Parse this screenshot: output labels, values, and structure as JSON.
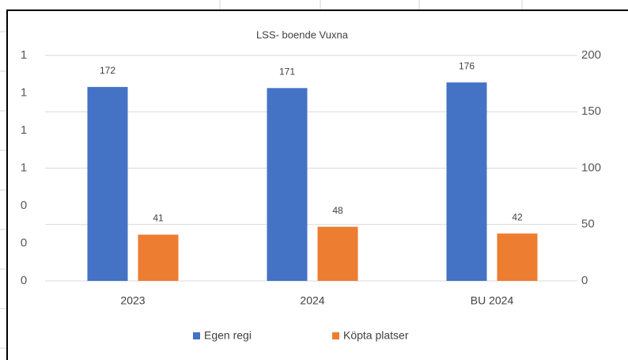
{
  "chart_data": {
    "type": "bar",
    "title": "LSS- boende Vuxna",
    "categories": [
      "2023",
      "2024",
      "BU 2024"
    ],
    "series": [
      {
        "name": "Egen regi",
        "color": "#4472c4",
        "axis": "y2",
        "values": [
          172,
          171,
          176
        ]
      },
      {
        "name": "Köpta platser",
        "color": "#ed7d31",
        "axis": "y2",
        "values": [
          41,
          48,
          42
        ]
      }
    ],
    "ylim": [
      0,
      1.2
    ],
    "yticks": [
      {
        "value": 0,
        "label": "0"
      },
      {
        "value": 0.2,
        "label": "0"
      },
      {
        "value": 0.4,
        "label": "0"
      },
      {
        "value": 0.6,
        "label": "1"
      },
      {
        "value": 0.8,
        "label": "1"
      },
      {
        "value": 1.0,
        "label": "1"
      },
      {
        "value": 1.2,
        "label": "1"
      }
    ],
    "y2lim": [
      0,
      200
    ],
    "y2ticks": [
      0,
      50,
      100,
      150,
      200
    ],
    "grid": true,
    "legend": "bottom"
  }
}
